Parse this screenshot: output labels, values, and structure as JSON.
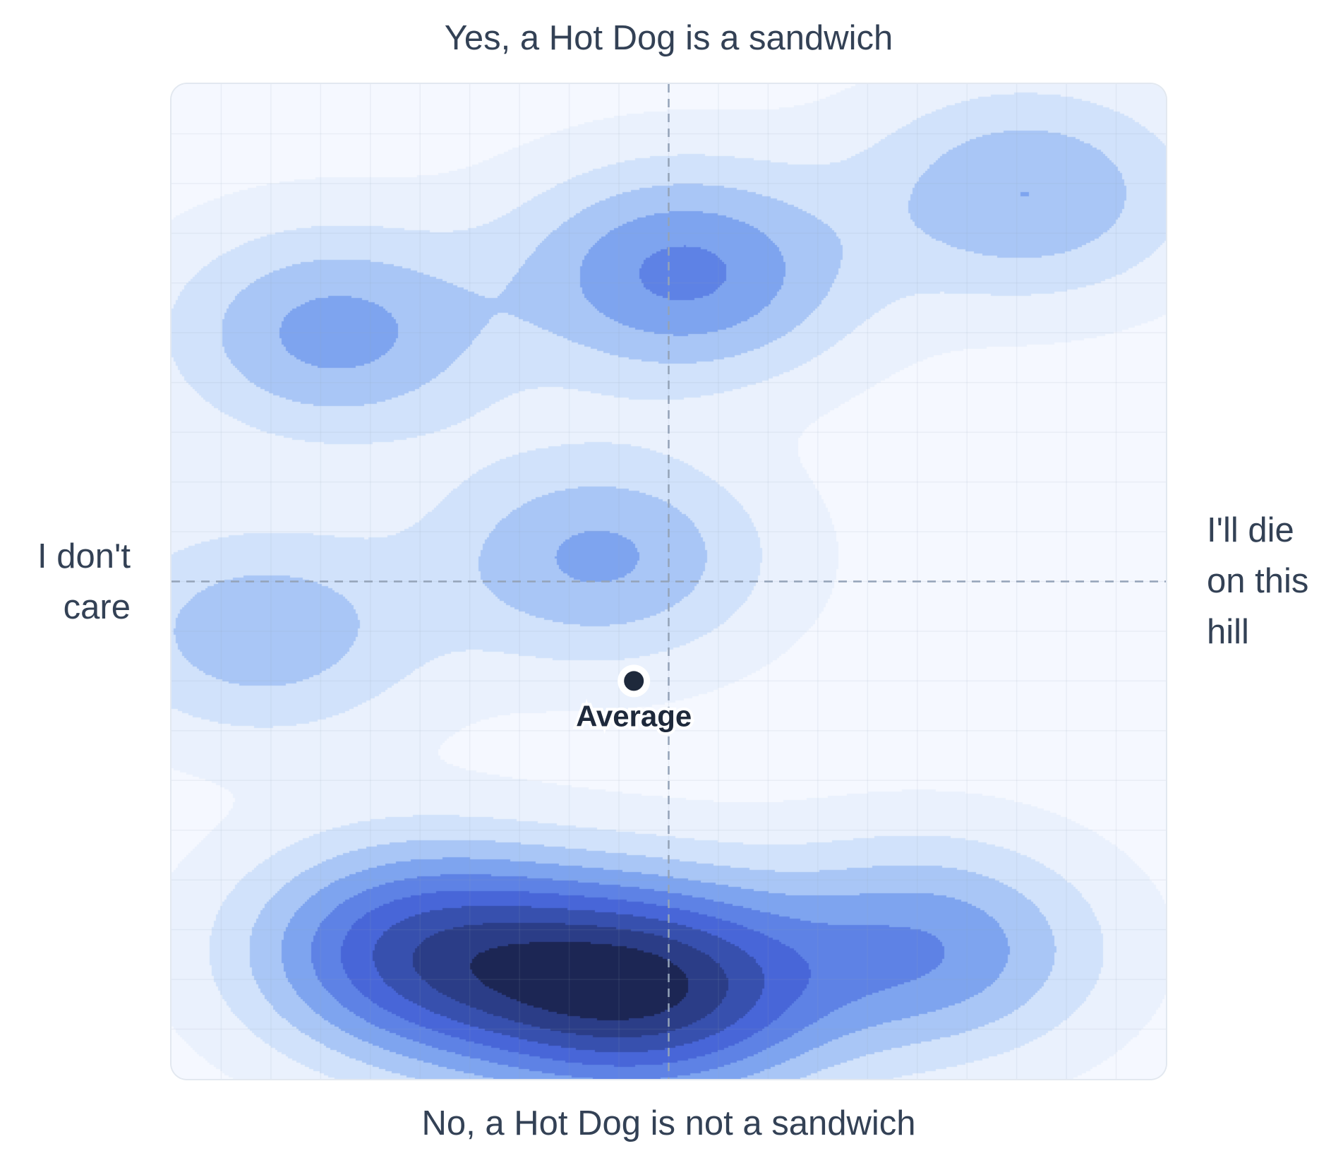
{
  "axes": {
    "top": "Yes, a Hot Dog is a sandwich",
    "bottom": "No, a Hot Dog is not a sandwich",
    "left": "I don't care",
    "right": "I'll die on this hill"
  },
  "colors": {
    "levels": [
      "#f5f8ff",
      "#eaf1fd",
      "#d1e2fb",
      "#a9c6f6",
      "#7ea4ef",
      "#5e82e5",
      "#4866d8",
      "#3750ae",
      "#2b3d87",
      "#1c2654"
    ],
    "grid": "#94a3b8",
    "crosshair": "#94a3b8",
    "average_marker": "#1e293b",
    "text": "#334155"
  },
  "chart_data": {
    "type": "heatmap",
    "subtype": "density contour",
    "xlim": [
      -1,
      1
    ],
    "ylim": [
      -1,
      1
    ],
    "x_axis": {
      "min_label": "I don't care",
      "max_label": "I'll die on this hill"
    },
    "y_axis": {
      "min_label": "No, a Hot Dog is not a sandwich",
      "max_label": "Yes, a Hot Dog is a sandwich"
    },
    "grid": true,
    "crosshair_at": [
      0,
      0
    ],
    "contour_levels": 10,
    "density_peaks": [
      {
        "x": 0.0,
        "y": -0.82,
        "weight": 1.0
      },
      {
        "x": -0.52,
        "y": -0.74,
        "weight": 0.78
      },
      {
        "x": -0.25,
        "y": -0.8,
        "weight": 0.6
      },
      {
        "x": 0.52,
        "y": -0.74,
        "weight": 0.55
      },
      {
        "x": 0.03,
        "y": 0.62,
        "weight": 0.62
      },
      {
        "x": -0.67,
        "y": 0.5,
        "weight": 0.48
      },
      {
        "x": 0.72,
        "y": 0.78,
        "weight": 0.42
      },
      {
        "x": -0.14,
        "y": 0.05,
        "weight": 0.45
      },
      {
        "x": -0.82,
        "y": -0.1,
        "weight": 0.38
      }
    ],
    "average": {
      "label": "Average",
      "x": -0.07,
      "y": -0.2
    }
  }
}
